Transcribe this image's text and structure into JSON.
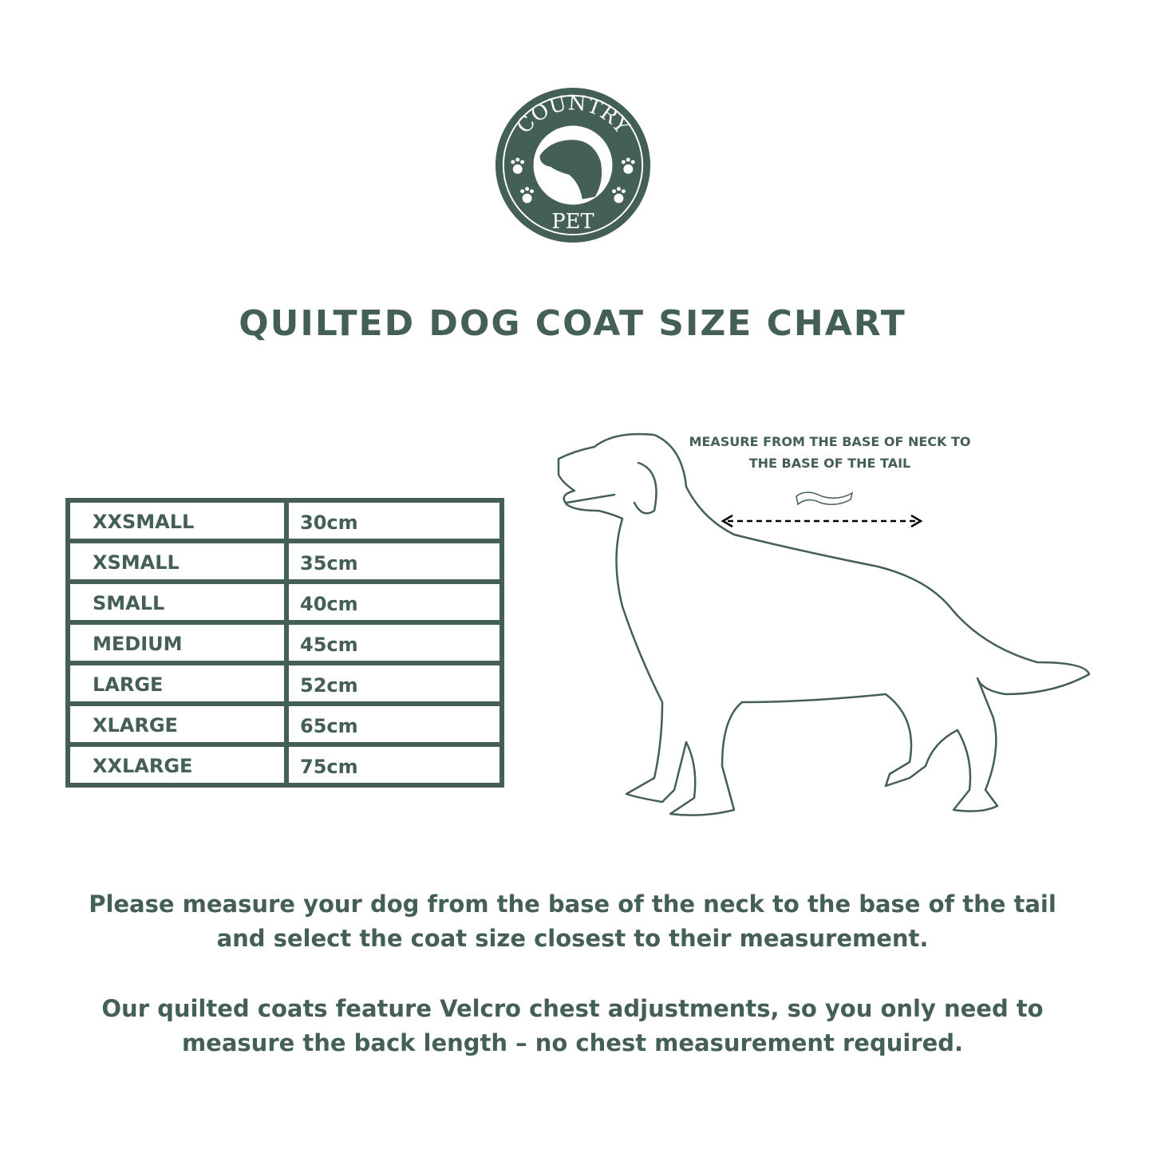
{
  "brand": {
    "logo_text_top": "COUNTRY",
    "logo_text_bottom": "PET",
    "color": "#445f54"
  },
  "title": "QUILTED DOG COAT SIZE CHART",
  "size_table": {
    "rows": [
      {
        "size": "XXSMALL",
        "length": "30cm"
      },
      {
        "size": "XSMALL",
        "length": "35cm"
      },
      {
        "size": "SMALL",
        "length": "40cm"
      },
      {
        "size": "MEDIUM",
        "length": "45cm"
      },
      {
        "size": "LARGE",
        "length": "52cm"
      },
      {
        "size": "XLARGE",
        "length": "65cm"
      },
      {
        "size": "XXLARGE",
        "length": "75cm"
      }
    ]
  },
  "illustration": {
    "measure_line1": "MEASURE FROM THE BASE OF NECK TO",
    "measure_line2": "THE BASE OF THE TAIL"
  },
  "instructions": {
    "p1_line1": "Please measure your dog from the base of the neck to the base of the tail",
    "p1_line2": "and select the coat size closest to their measurement.",
    "p2_line1": "Our quilted coats feature Velcro chest adjustments, so you only need to",
    "p2_line2": "measure the back length – no chest measurement required."
  }
}
